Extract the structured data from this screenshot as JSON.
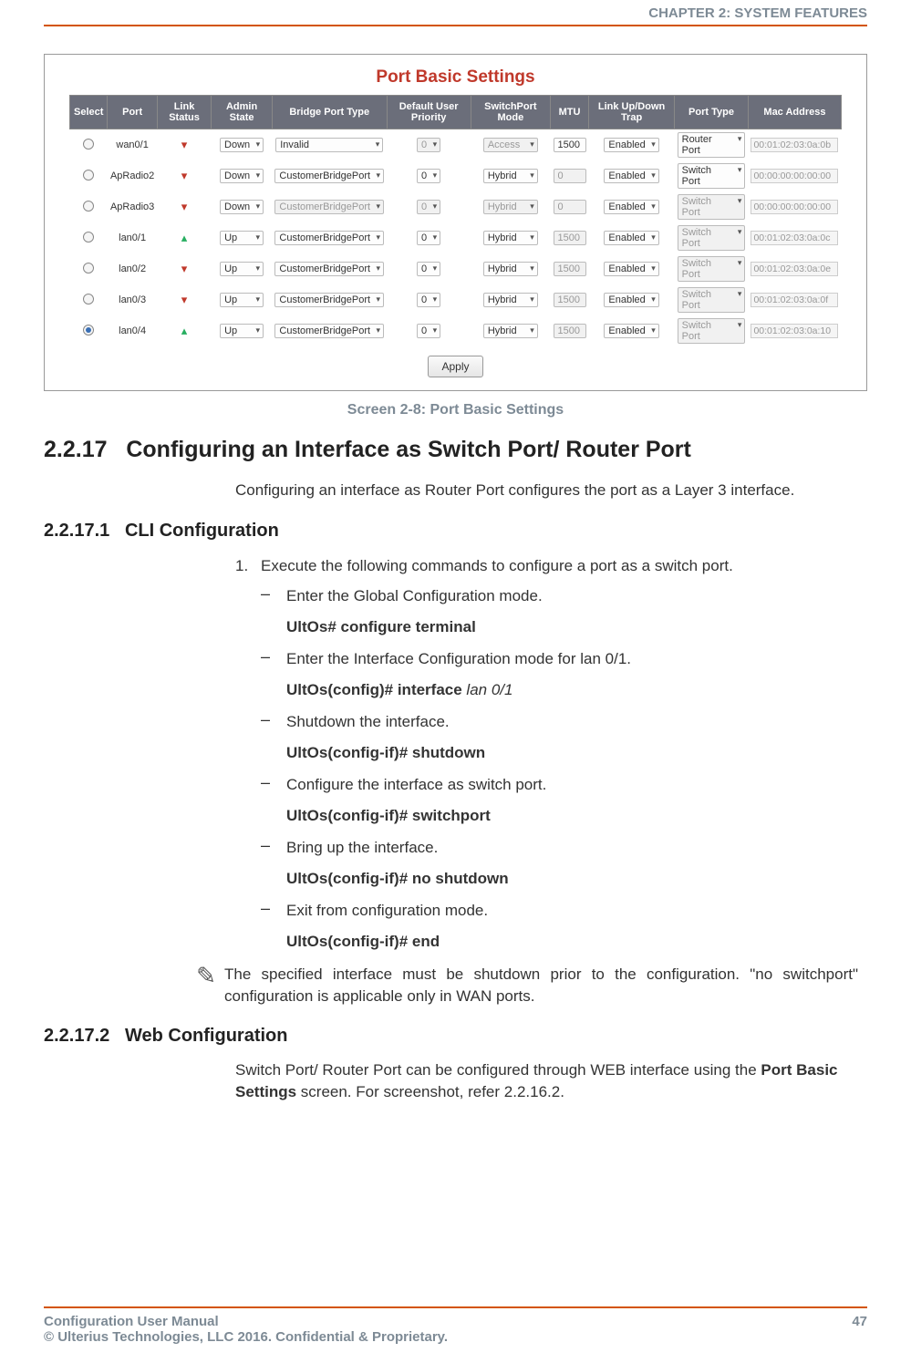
{
  "header": {
    "chapter": "CHAPTER 2: SYSTEM FEATURES"
  },
  "screenshot": {
    "title": "Port Basic Settings",
    "columns": [
      "Select",
      "Port",
      "Link Status",
      "Admin State",
      "Bridge Port Type",
      "Default User Priority",
      "SwitchPort Mode",
      "MTU",
      "Link Up/Down Trap",
      "Port Type",
      "Mac Address"
    ],
    "rows": [
      {
        "selected": false,
        "port": "wan0/1",
        "link": "down",
        "admin": "Down",
        "admin_en": true,
        "bridge": "Invalid",
        "bridge_en": true,
        "prio": "0",
        "prio_en": false,
        "mode": "Access",
        "mode_en": false,
        "mtu": "1500",
        "mtu_en": true,
        "trap": "Enabled",
        "ptype": "Router Port",
        "ptype_en": true,
        "mac": "00:01:02:03:0a:0b"
      },
      {
        "selected": false,
        "port": "ApRadio2",
        "link": "down",
        "admin": "Down",
        "admin_en": true,
        "bridge": "CustomerBridgePort",
        "bridge_en": true,
        "prio": "0",
        "prio_en": true,
        "mode": "Hybrid",
        "mode_en": true,
        "mtu": "0",
        "mtu_en": false,
        "trap": "Enabled",
        "ptype": "Switch Port",
        "ptype_en": true,
        "mac": "00:00:00:00:00:00"
      },
      {
        "selected": false,
        "port": "ApRadio3",
        "link": "down",
        "admin": "Down",
        "admin_en": true,
        "bridge": "CustomerBridgePort",
        "bridge_en": false,
        "prio": "0",
        "prio_en": false,
        "mode": "Hybrid",
        "mode_en": false,
        "mtu": "0",
        "mtu_en": false,
        "trap": "Enabled",
        "ptype": "Switch Port",
        "ptype_en": false,
        "mac": "00:00:00:00:00:00"
      },
      {
        "selected": false,
        "port": "lan0/1",
        "link": "up",
        "admin": "Up",
        "admin_en": true,
        "bridge": "CustomerBridgePort",
        "bridge_en": true,
        "prio": "0",
        "prio_en": true,
        "mode": "Hybrid",
        "mode_en": true,
        "mtu": "1500",
        "mtu_en": false,
        "trap": "Enabled",
        "ptype": "Switch Port",
        "ptype_en": false,
        "mac": "00:01:02:03:0a:0c"
      },
      {
        "selected": false,
        "port": "lan0/2",
        "link": "down",
        "admin": "Up",
        "admin_en": true,
        "bridge": "CustomerBridgePort",
        "bridge_en": true,
        "prio": "0",
        "prio_en": true,
        "mode": "Hybrid",
        "mode_en": true,
        "mtu": "1500",
        "mtu_en": false,
        "trap": "Enabled",
        "ptype": "Switch Port",
        "ptype_en": false,
        "mac": "00:01:02:03:0a:0e"
      },
      {
        "selected": false,
        "port": "lan0/3",
        "link": "down",
        "admin": "Up",
        "admin_en": true,
        "bridge": "CustomerBridgePort",
        "bridge_en": true,
        "prio": "0",
        "prio_en": true,
        "mode": "Hybrid",
        "mode_en": true,
        "mtu": "1500",
        "mtu_en": false,
        "trap": "Enabled",
        "ptype": "Switch Port",
        "ptype_en": false,
        "mac": "00:01:02:03:0a:0f"
      },
      {
        "selected": true,
        "port": "lan0/4",
        "link": "up",
        "admin": "Up",
        "admin_en": true,
        "bridge": "CustomerBridgePort",
        "bridge_en": true,
        "prio": "0",
        "prio_en": true,
        "mode": "Hybrid",
        "mode_en": true,
        "mtu": "1500",
        "mtu_en": false,
        "trap": "Enabled",
        "ptype": "Switch Port",
        "ptype_en": false,
        "mac": "00:01:02:03:0a:10"
      }
    ],
    "apply_label": "Apply"
  },
  "caption": "Screen 2-8: Port Basic Settings",
  "sec": {
    "num": "2.2.17",
    "title": "Configuring an Interface as Switch Port/ Router Port",
    "intro": "Configuring an interface as Router Port configures the port as a Layer 3 interface."
  },
  "sub1": {
    "num": "2.2.17.1",
    "title": "CLI Configuration",
    "step1": "Execute the following commands to configure a port as a switch port.",
    "items": [
      {
        "text": "Enter the Global Configuration mode.",
        "cmd": "UltOs# configure terminal"
      },
      {
        "text": "Enter the Interface Configuration mode for lan 0/1.",
        "cmd_prefix": "UltOs(config)# interface ",
        "cmd_ital": "lan 0/1"
      },
      {
        "text": "Shutdown the interface.",
        "cmd": "UltOs(config-if)# shutdown"
      },
      {
        "text": "Configure the interface as switch port.",
        "cmd": "UltOs(config-if)# switchport"
      },
      {
        "text": "Bring up the interface.",
        "cmd": "UltOs(config-if)# no shutdown"
      },
      {
        "text": "Exit from configuration mode.",
        "cmd": "UltOs(config-if)# end"
      }
    ],
    "note": "The specified interface must be shutdown prior to the configuration. \"no switchport\" configuration is applicable only in WAN ports."
  },
  "sub2": {
    "num": "2.2.17.2",
    "title": "Web Configuration",
    "para_a": "Switch Port/ Router Port can be configured through WEB interface using the ",
    "para_b": "Port Basic Settings",
    "para_c": " screen. For screenshot, refer 2.2.16.2."
  },
  "footer": {
    "left1": "Configuration User Manual",
    "left2": "© Ulterius Technologies, LLC 2016. Confidential & Proprietary.",
    "page": "47"
  }
}
